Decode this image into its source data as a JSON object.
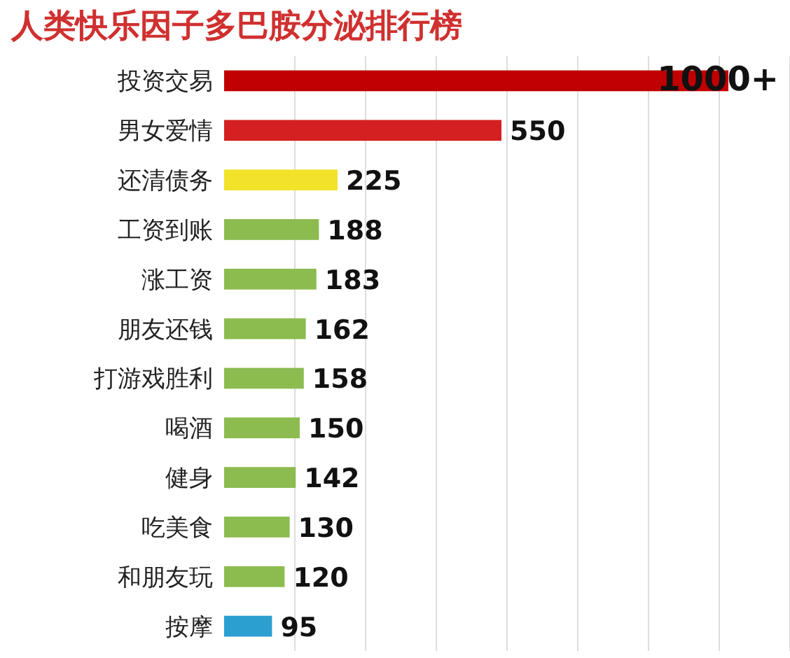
{
  "chart_data": {
    "type": "bar",
    "orientation": "horizontal",
    "title": "人类快乐因子多巴胺分泌排行榜",
    "grid": "x",
    "categories": [
      "投资交易",
      "男女爱情",
      "还清债务",
      "工资到账",
      "涨工资",
      "朋友还钱",
      "打游戏胜利",
      "喝酒",
      "健身",
      "吃美食",
      "和朋友玩",
      "按摩"
    ],
    "values": [
      1000,
      550,
      225,
      188,
      183,
      162,
      158,
      150,
      142,
      130,
      120,
      95
    ],
    "colors": [
      "#c00000",
      "#d42020",
      "#f2e22a",
      "#8cbb50",
      "#8cbb50",
      "#8cbb50",
      "#8cbb50",
      "#8cbb50",
      "#8cbb50",
      "#8cbb50",
      "#8cbb50",
      "#2a9fd0"
    ],
    "value_labels": [
      "1000+",
      "550",
      "225",
      "188",
      "183",
      "162",
      "158",
      "150",
      "142",
      "130",
      "120",
      "95"
    ]
  }
}
